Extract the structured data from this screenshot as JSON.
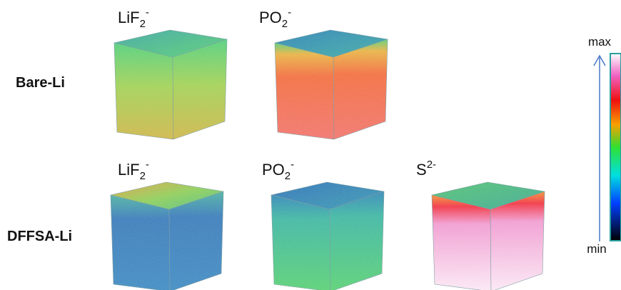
{
  "row_labels": [
    "Bare-Li",
    "DFFSA-Li"
  ],
  "panels": [
    {
      "species": "LiF",
      "sub": "2",
      "sup": "-"
    },
    {
      "species": "PO",
      "sub": "2",
      "sup": "-"
    },
    {
      "species": "LiF",
      "sub": "2",
      "sup": "-"
    },
    {
      "species": "PO",
      "sub": "2",
      "sup": "-"
    },
    {
      "species": "S",
      "sup": "2-"
    }
  ],
  "colorbar": {
    "max": "max",
    "min": "min"
  }
}
